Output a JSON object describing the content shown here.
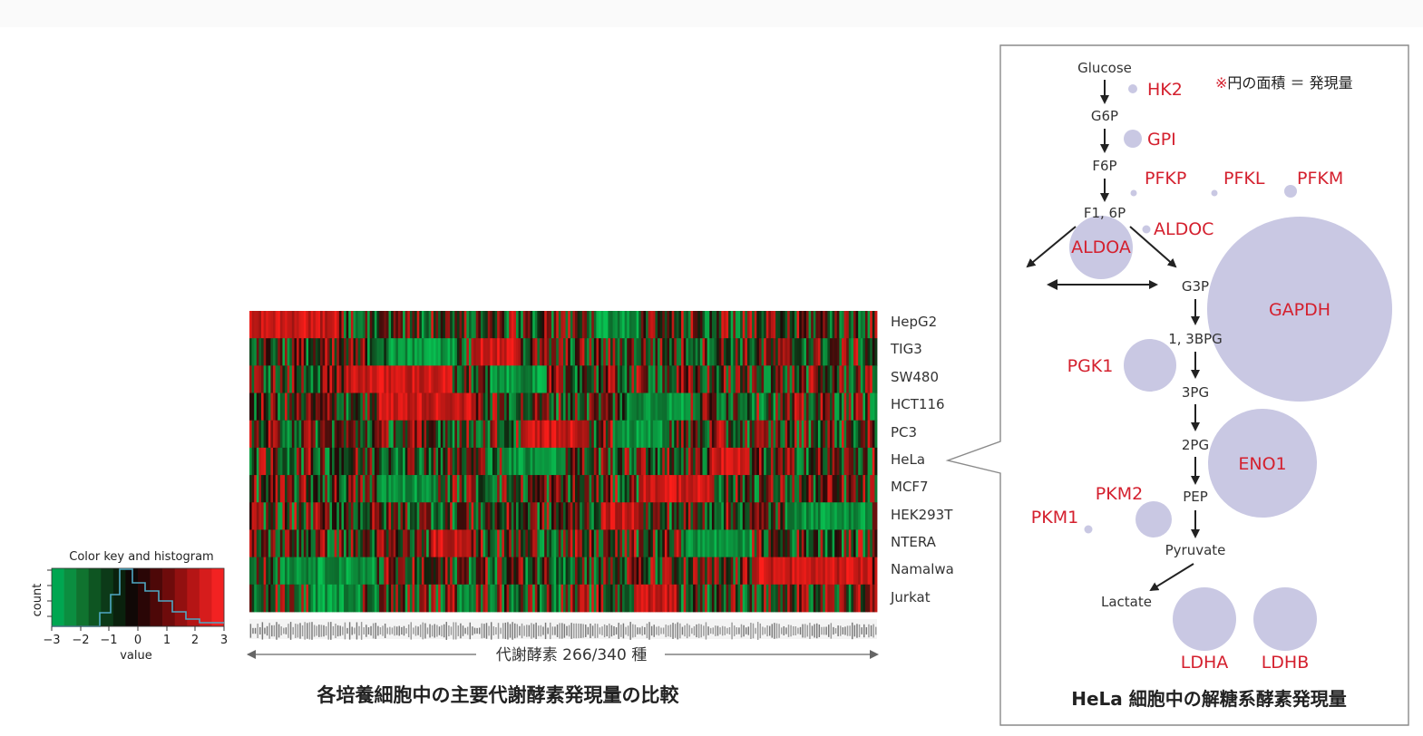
{
  "heatmap": {
    "rows": [
      "HepG2",
      "TIG3",
      "SW480",
      "HCT116",
      "PC3",
      "HeLa",
      "MCF7",
      "HEK293T",
      "NTERA",
      "Namalwa",
      "Jurkat"
    ],
    "enzyme_axis_label": "代謝酵素 266/340 種",
    "caption": "各培養細胞中の主要代謝酵素発現量の比較"
  },
  "color_key": {
    "title": "Color key and histogram",
    "ylabel": "count",
    "xlabel": "value",
    "ticks": [
      "−3",
      "−2",
      "−1",
      "0",
      "1",
      "2",
      "3"
    ],
    "colors": [
      "#00a651",
      "#0b8e40",
      "#10732f",
      "#0e5522",
      "#0c3a18",
      "#0a210d",
      "#100806",
      "#2a0606",
      "#4d0808",
      "#6e0b0b",
      "#921010",
      "#b51515",
      "#d61c1c",
      "#f22222"
    ]
  },
  "pathway": {
    "title": "HeLa 細胞中の解糖系酵素発現量",
    "note_mark": "※",
    "note_text": "円の面積 ＝ 発現量",
    "metabolites": [
      "Glucose",
      "G6P",
      "F6P",
      "F1, 6P",
      "G3P",
      "1, 3BPG",
      "3PG",
      "2PG",
      "PEP",
      "Pyruvate",
      "Lactate"
    ],
    "enzymes": [
      "HK2",
      "GPI",
      "PFKP",
      "PFKL",
      "PFKM",
      "ALDOC",
      "ALDOA",
      "GAPDH",
      "PGK1",
      "ENO1",
      "PKM2",
      "PKM1",
      "LDHA",
      "LDHB"
    ],
    "bubble_color": "#c9c8e3",
    "enzyme_color": "#d4202e"
  }
}
